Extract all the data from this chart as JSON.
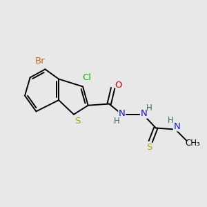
{
  "background_color": "#e8e8e8",
  "bond_color": "#000000",
  "atom_colors": {
    "Br": "#c07020",
    "Cl": "#00bb00",
    "S": "#aaaa00",
    "N": "#1010dd",
    "O": "#cc0000",
    "H": "#446666",
    "C": "#000000"
  },
  "figsize": [
    3.0,
    3.0
  ],
  "dpi": 100,
  "bond_lw": 1.4,
  "font_size": 9.5
}
